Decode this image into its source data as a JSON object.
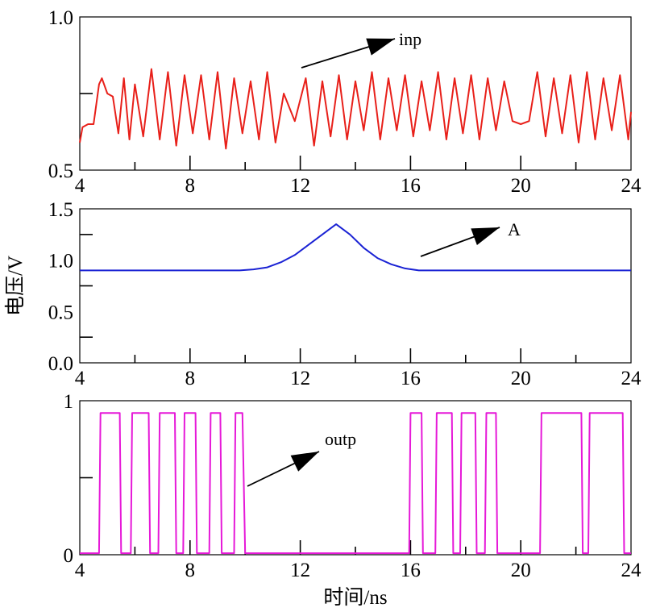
{
  "chart_data": [
    {
      "type": "line",
      "id": "inp",
      "xlim": [
        4,
        24
      ],
      "ylim": [
        0.5,
        1.0
      ],
      "xticks": [
        "4",
        "8",
        "12",
        "16",
        "20",
        "24"
      ],
      "yticks": [
        "0.5",
        "1.0"
      ],
      "ylabel": "",
      "xlabel": "",
      "color": "#e8201a",
      "annotation": "inp",
      "series": [
        {
          "x": [
            4.0,
            4.1,
            4.3,
            4.5,
            4.7,
            4.8,
            5.0,
            5.2,
            5.4,
            5.6,
            5.8,
            6.0,
            6.3,
            6.6,
            6.9,
            7.2,
            7.5,
            7.8,
            8.1,
            8.4,
            8.7,
            9.0,
            9.3,
            9.6,
            9.9,
            10.2,
            10.5,
            10.8,
            11.1,
            11.4,
            11.8,
            12.2,
            12.5,
            12.8,
            13.1,
            13.4,
            13.7,
            14.0,
            14.3,
            14.6,
            14.9,
            15.2,
            15.5,
            15.8,
            16.1,
            16.4,
            16.7,
            17.0,
            17.3,
            17.6,
            17.9,
            18.2,
            18.5,
            18.8,
            19.1,
            19.4,
            19.7,
            20.0,
            20.3,
            20.6,
            20.9,
            21.2,
            21.5,
            21.8,
            22.1,
            22.4,
            22.7,
            23.0,
            23.3,
            23.6,
            23.9,
            24.0
          ],
          "y": [
            0.59,
            0.64,
            0.65,
            0.65,
            0.78,
            0.8,
            0.75,
            0.74,
            0.62,
            0.8,
            0.6,
            0.78,
            0.61,
            0.83,
            0.6,
            0.82,
            0.58,
            0.81,
            0.62,
            0.81,
            0.6,
            0.82,
            0.57,
            0.8,
            0.62,
            0.79,
            0.6,
            0.82,
            0.59,
            0.75,
            0.66,
            0.8,
            0.58,
            0.79,
            0.61,
            0.81,
            0.6,
            0.79,
            0.63,
            0.82,
            0.6,
            0.8,
            0.63,
            0.81,
            0.61,
            0.79,
            0.63,
            0.82,
            0.6,
            0.8,
            0.62,
            0.81,
            0.6,
            0.8,
            0.63,
            0.79,
            0.66,
            0.65,
            0.66,
            0.82,
            0.61,
            0.8,
            0.62,
            0.81,
            0.59,
            0.82,
            0.6,
            0.8,
            0.63,
            0.81,
            0.6,
            0.69
          ]
        }
      ]
    },
    {
      "type": "line",
      "id": "A",
      "xlim": [
        4,
        24
      ],
      "ylim": [
        0.0,
        1.5
      ],
      "xticks": [
        "4",
        "8",
        "12",
        "16",
        "20",
        "24"
      ],
      "yticks": [
        "0.0",
        "0.5",
        "1.0",
        "1.5"
      ],
      "ylabel": "电压/V",
      "xlabel": "",
      "color": "#1a22d4",
      "annotation": "A",
      "series": [
        {
          "x": [
            4.0,
            4.3,
            4.8,
            5.3,
            5.8,
            6.3,
            6.8,
            7.3,
            7.8,
            8.3,
            8.8,
            9.3,
            9.8,
            10.3,
            10.8,
            11.3,
            11.8,
            12.3,
            12.8,
            13.3,
            13.8,
            14.3,
            14.8,
            15.3,
            15.8,
            16.3,
            16.8,
            17.3,
            17.8,
            18.3,
            18.8,
            19.3,
            19.8,
            20.3,
            20.8,
            21.3,
            21.8,
            22.3,
            22.8,
            23.3,
            23.8,
            24.0
          ],
          "y": [
            0.9,
            0.9,
            0.9,
            0.9,
            0.9,
            0.9,
            0.9,
            0.9,
            0.9,
            0.9,
            0.9,
            0.9,
            0.9,
            0.91,
            0.93,
            0.98,
            1.05,
            1.15,
            1.25,
            1.35,
            1.25,
            1.12,
            1.02,
            0.96,
            0.92,
            0.9,
            0.9,
            0.9,
            0.9,
            0.9,
            0.9,
            0.9,
            0.9,
            0.9,
            0.9,
            0.9,
            0.9,
            0.9,
            0.9,
            0.9,
            0.9,
            0.9
          ]
        }
      ]
    },
    {
      "type": "line",
      "id": "outp",
      "xlim": [
        4,
        24
      ],
      "ylim": [
        0,
        1
      ],
      "xticks": [
        "4",
        "8",
        "12",
        "16",
        "20",
        "24"
      ],
      "yticks": [
        "0",
        "1"
      ],
      "ylabel": "",
      "xlabel": "时间/ns",
      "color": "#e619d8",
      "annotation": "outp",
      "series": [
        {
          "x": [
            4.0,
            4.7,
            4.75,
            5.45,
            5.5,
            5.85,
            5.9,
            6.5,
            6.55,
            6.85,
            6.9,
            7.45,
            7.5,
            7.75,
            7.8,
            8.2,
            8.25,
            8.7,
            8.75,
            9.1,
            9.15,
            9.6,
            9.65,
            9.9,
            10.0,
            15.95,
            16.0,
            16.4,
            16.45,
            16.9,
            16.95,
            17.5,
            17.55,
            17.8,
            17.85,
            18.35,
            18.4,
            18.7,
            18.75,
            19.1,
            19.15,
            20.7,
            20.75,
            22.2,
            22.25,
            22.45,
            22.5,
            23.7,
            23.75,
            24.0
          ],
          "y": [
            0.01,
            0.01,
            0.92,
            0.92,
            0.01,
            0.01,
            0.92,
            0.92,
            0.01,
            0.01,
            0.92,
            0.92,
            0.01,
            0.01,
            0.92,
            0.92,
            0.01,
            0.01,
            0.92,
            0.92,
            0.01,
            0.01,
            0.92,
            0.92,
            0.01,
            0.01,
            0.92,
            0.92,
            0.01,
            0.01,
            0.92,
            0.92,
            0.01,
            0.01,
            0.92,
            0.92,
            0.01,
            0.01,
            0.92,
            0.92,
            0.01,
            0.01,
            0.92,
            0.92,
            0.01,
            0.01,
            0.92,
            0.92,
            0.01,
            0.01
          ]
        }
      ]
    }
  ]
}
